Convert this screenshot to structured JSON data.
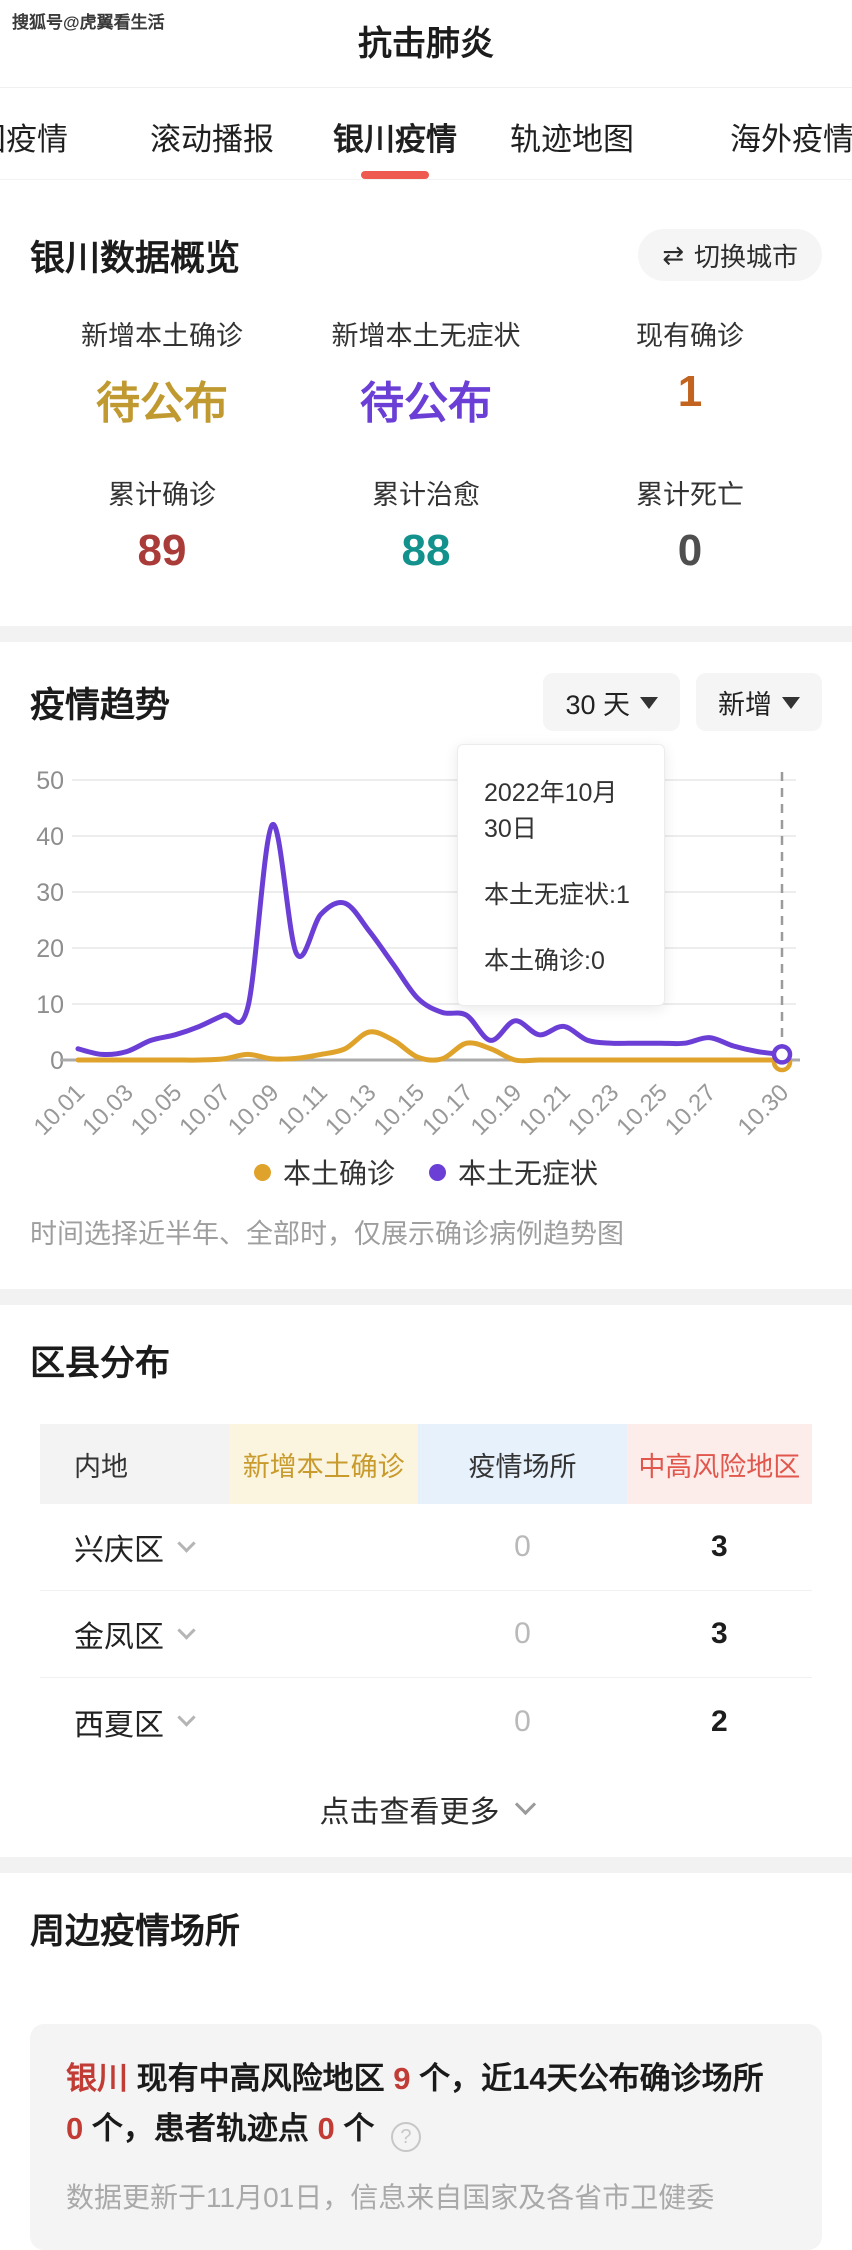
{
  "watermark": "搜狐号@虎翼看生活",
  "header": {
    "title": "抗击肺炎"
  },
  "tabs": {
    "items": [
      "全国疫情",
      "滚动播报",
      "银川疫情",
      "轨迹地图",
      "海外疫情"
    ],
    "active": "银川疫情"
  },
  "overview": {
    "title": "银川数据概览",
    "switch_city_label": "切换城市",
    "swap_icon": "⇄",
    "stats": [
      {
        "label": "新增本土确诊",
        "value": "待公布",
        "color": "#c09a30"
      },
      {
        "label": "新增本土无症状",
        "value": "待公布",
        "color": "#6b3fd6"
      },
      {
        "label": "现有确诊",
        "value": "1",
        "color": "#c2641f"
      },
      {
        "label": "累计确诊",
        "value": "89",
        "color": "#a93b39"
      },
      {
        "label": "累计治愈",
        "value": "88",
        "color": "#13928d"
      },
      {
        "label": "累计死亡",
        "value": "0",
        "color": "#4f4f4f"
      }
    ]
  },
  "trend": {
    "title": "疫情趋势",
    "range_button": "30 天",
    "mode_button": "新增",
    "tooltip": {
      "date": "2022年10月30日",
      "lines": [
        "本土无症状:1",
        "本土确诊:0"
      ]
    },
    "note": "时间选择近半年、全部时，仅展示确诊病例趋势图"
  },
  "chart_data": {
    "type": "line",
    "title": "疫情趋势 30天 新增",
    "x": [
      "10.01",
      "10.02",
      "10.03",
      "10.04",
      "10.05",
      "10.06",
      "10.07",
      "10.08",
      "10.09",
      "10.10",
      "10.11",
      "10.12",
      "10.13",
      "10.14",
      "10.15",
      "10.16",
      "10.17",
      "10.18",
      "10.19",
      "10.20",
      "10.21",
      "10.22",
      "10.23",
      "10.24",
      "10.25",
      "10.26",
      "10.27",
      "10.28",
      "10.29",
      "10.30"
    ],
    "xtick_labels": [
      "10.01",
      "10.03",
      "10.05",
      "10.07",
      "10.09",
      "10.11",
      "10.13",
      "10.15",
      "10.17",
      "10.19",
      "10.21",
      "10.23",
      "10.25",
      "10.27",
      "10.30"
    ],
    "ylim": [
      0,
      50
    ],
    "yticks": [
      0,
      10,
      20,
      30,
      40,
      50
    ],
    "grid": true,
    "legend_position": "bottom",
    "highlight_x": "10.30",
    "series": [
      {
        "name": "本土确诊",
        "color": "#dfa32b",
        "values": [
          0,
          0,
          0,
          0,
          0,
          0,
          0.2,
          1,
          0.2,
          0.3,
          1,
          2,
          5,
          3.5,
          0.5,
          0.2,
          3,
          2,
          0,
          0,
          0,
          0,
          0,
          0,
          0,
          0,
          0,
          0,
          0,
          0
        ]
      },
      {
        "name": "本土无症状",
        "color": "#6b3fd6",
        "values": [
          2,
          1,
          1.5,
          3.5,
          4.5,
          6,
          8,
          9.5,
          42,
          19,
          26,
          28,
          23,
          17,
          11,
          8.5,
          8,
          3.5,
          7,
          4.5,
          6,
          3.5,
          3,
          3,
          3,
          3,
          4,
          2.5,
          1.5,
          1
        ]
      }
    ]
  },
  "districts": {
    "title": "区县分布",
    "headers": [
      {
        "label": "内地",
        "bg": "#f3f3f3",
        "color": "#333333"
      },
      {
        "label": "新增本土确诊",
        "bg": "#fbf5df",
        "color": "#c99a2c"
      },
      {
        "label": "疫情场所",
        "bg": "#e7f1fb",
        "color": "#333333"
      },
      {
        "label": "中高风险地区",
        "bg": "#fcecea",
        "color": "#e2574d"
      }
    ],
    "rows": [
      {
        "name": "兴庆区",
        "new_local": "",
        "venues": "0",
        "risk": "3"
      },
      {
        "name": "金凤区",
        "new_local": "",
        "venues": "0",
        "risk": "3"
      },
      {
        "name": "西夏区",
        "new_local": "",
        "venues": "0",
        "risk": "2"
      }
    ],
    "more_label": "点击查看更多"
  },
  "nearby": {
    "title": "周边疫情场所",
    "summary_segments": [
      {
        "text": "银川",
        "red": true
      },
      {
        "text": " 现有中高风险地区 ",
        "red": false
      },
      {
        "text": "9",
        "red": true
      },
      {
        "text": " 个，近14天公布确诊场所 ",
        "red": false
      },
      {
        "text": "0",
        "red": true
      },
      {
        "text": " 个，患者轨迹点 ",
        "red": false
      },
      {
        "text": "0",
        "red": true
      },
      {
        "text": " 个 ",
        "red": false
      }
    ],
    "help_icon": "?",
    "update_note": "数据更新于11月01日，信息来自国家及各省市卫健委"
  }
}
